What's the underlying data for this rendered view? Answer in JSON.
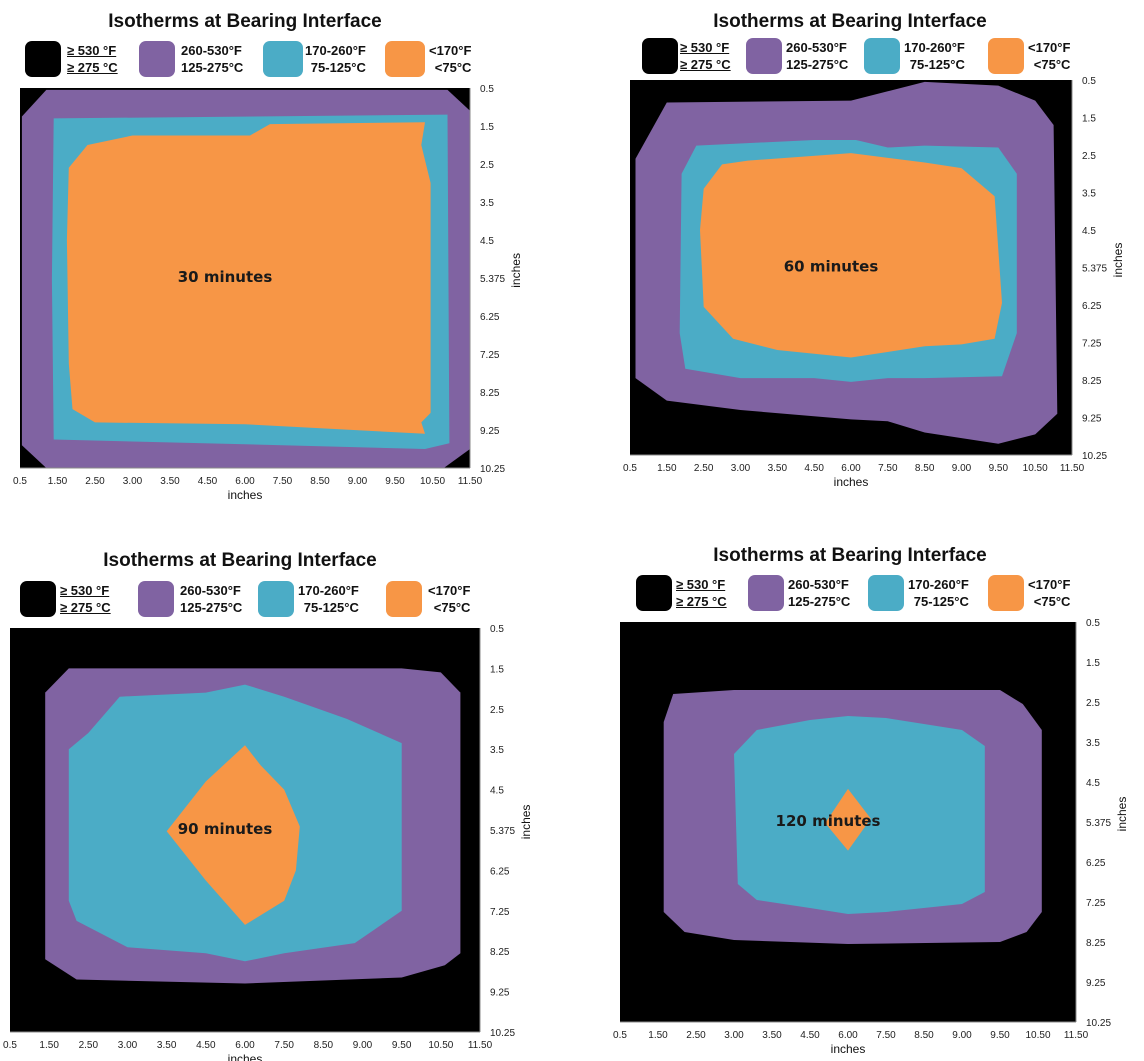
{
  "figure": {
    "legend": [
      {
        "key": "black",
        "line1": "≥ 530 °F",
        "line2": "≥ 275 °C",
        "color": "#000000"
      },
      {
        "key": "purple",
        "line1": "260-530°F",
        "line2": "125-275°C",
        "color": "#8063a2"
      },
      {
        "key": "teal",
        "line1": "170-260°F",
        "line2": "75-125°C",
        "color": "#4bacc6"
      },
      {
        "key": "orange",
        "line1": "<170°F",
        "line2": "<75°C",
        "color": "#f79646"
      }
    ],
    "x_ticks": [
      "0.5",
      "1.50",
      "2.50",
      "3.00",
      "3.50",
      "4.50",
      "6.00",
      "7.50",
      "8.50",
      "9.00",
      "9.50",
      "10.50",
      "11.50"
    ],
    "y_ticks": [
      "0.5",
      "1.5",
      "2.5",
      "3.5",
      "4.5",
      "5.375",
      "6.25",
      "7.25",
      "8.25",
      "9.25",
      "10.25"
    ]
  },
  "chart_data": [
    {
      "type": "contour",
      "title": "Isotherms at Bearing Interface",
      "annotation": "30 minutes",
      "xlabel": "inches",
      "ylabel": "inches",
      "x_positions": [
        0.5,
        1.5,
        2.5,
        3.0,
        3.5,
        4.5,
        6.0,
        7.5,
        8.5,
        9.0,
        9.5,
        10.5,
        11.5
      ],
      "y_positions": [
        0.5,
        1.5,
        2.5,
        3.5,
        4.5,
        5.375,
        6.25,
        7.25,
        8.25,
        9.25,
        10.25
      ],
      "regions": [
        {
          "band": "purple",
          "polygon": [
            [
              1.2,
              0.55
            ],
            [
              10.9,
              0.55
            ],
            [
              11.5,
              1.1
            ],
            [
              11.5,
              9.75
            ],
            [
              10.8,
              10.25
            ],
            [
              1.2,
              10.25
            ],
            [
              0.55,
              9.65
            ],
            [
              0.55,
              1.25
            ]
          ]
        },
        {
          "band": "teal",
          "polygon": [
            [
              1.4,
              1.3
            ],
            [
              10.9,
              1.2
            ],
            [
              10.95,
              9.6
            ],
            [
              10.3,
              9.75
            ],
            [
              7.5,
              9.65
            ],
            [
              1.4,
              9.5
            ],
            [
              1.35,
              5.4
            ]
          ]
        },
        {
          "band": "orange",
          "polygon": [
            [
              2.3,
              2.0
            ],
            [
              3.0,
              1.75
            ],
            [
              6.2,
              1.75
            ],
            [
              7.0,
              1.45
            ],
            [
              10.3,
              1.4
            ],
            [
              10.2,
              2.0
            ],
            [
              10.45,
              3.0
            ],
            [
              10.45,
              8.8
            ],
            [
              10.2,
              9.05
            ],
            [
              10.3,
              9.35
            ],
            [
              7.5,
              9.15
            ],
            [
              6.0,
              9.1
            ],
            [
              2.5,
              9.05
            ],
            [
              1.9,
              8.7
            ],
            [
              1.8,
              7.5
            ],
            [
              1.75,
              4.5
            ],
            [
              1.8,
              2.6
            ]
          ]
        }
      ]
    },
    {
      "type": "contour",
      "title": "Isotherms at Bearing Interface",
      "annotation": "60 minutes",
      "xlabel": "inches",
      "ylabel": "inches",
      "x_positions": [
        0.5,
        1.5,
        2.5,
        3.0,
        3.5,
        4.5,
        6.0,
        7.5,
        8.5,
        9.0,
        9.5,
        10.5,
        11.5
      ],
      "y_positions": [
        0.5,
        1.5,
        2.5,
        3.5,
        4.5,
        5.375,
        6.25,
        7.25,
        8.25,
        9.25,
        10.25
      ],
      "regions": [
        {
          "band": "purple",
          "polygon": [
            [
              1.5,
              1.1
            ],
            [
              6.0,
              1.05
            ],
            [
              7.5,
              0.8
            ],
            [
              8.5,
              0.55
            ],
            [
              9.5,
              0.65
            ],
            [
              10.5,
              1.05
            ],
            [
              11.0,
              1.7
            ],
            [
              11.1,
              9.15
            ],
            [
              10.5,
              9.7
            ],
            [
              9.5,
              9.95
            ],
            [
              8.5,
              9.65
            ],
            [
              7.5,
              9.35
            ],
            [
              6.0,
              9.3
            ],
            [
              3.0,
              9.05
            ],
            [
              1.5,
              8.8
            ],
            [
              0.65,
              8.2
            ],
            [
              0.65,
              2.6
            ]
          ]
        },
        {
          "band": "teal",
          "polygon": [
            [
              2.3,
              2.25
            ],
            [
              4.5,
              2.1
            ],
            [
              6.2,
              2.1
            ],
            [
              7.5,
              2.3
            ],
            [
              8.5,
              2.25
            ],
            [
              9.5,
              2.3
            ],
            [
              10.0,
              3.0
            ],
            [
              10.0,
              7.0
            ],
            [
              9.6,
              8.15
            ],
            [
              8.5,
              8.2
            ],
            [
              7.5,
              8.2
            ],
            [
              6.0,
              8.3
            ],
            [
              4.5,
              8.2
            ],
            [
              3.0,
              8.2
            ],
            [
              2.0,
              7.95
            ],
            [
              1.85,
              7.0
            ],
            [
              1.9,
              3.0
            ]
          ]
        },
        {
          "band": "orange",
          "polygon": [
            [
              3.1,
              2.65
            ],
            [
              6.0,
              2.45
            ],
            [
              8.5,
              2.7
            ],
            [
              9.0,
              2.85
            ],
            [
              9.45,
              3.6
            ],
            [
              9.6,
              6.2
            ],
            [
              9.45,
              7.15
            ],
            [
              9.0,
              7.3
            ],
            [
              8.5,
              7.35
            ],
            [
              6.0,
              7.65
            ],
            [
              3.5,
              7.45
            ],
            [
              2.9,
              7.15
            ],
            [
              2.5,
              6.3
            ],
            [
              2.4,
              4.5
            ],
            [
              2.5,
              3.4
            ],
            [
              2.75,
              2.75
            ]
          ]
        }
      ]
    },
    {
      "type": "contour",
      "title": "Isotherms at Bearing Interface",
      "annotation": "90 minutes",
      "xlabel": "inches",
      "ylabel": "inches",
      "x_positions": [
        0.5,
        1.5,
        2.5,
        3.0,
        3.5,
        4.5,
        6.0,
        7.5,
        8.5,
        9.0,
        9.5,
        10.5,
        11.5
      ],
      "y_positions": [
        0.5,
        1.5,
        2.5,
        3.5,
        4.5,
        5.375,
        6.25,
        7.25,
        8.25,
        9.25,
        10.25
      ],
      "regions": [
        {
          "band": "purple",
          "polygon": [
            [
              2.0,
              1.5
            ],
            [
              3.5,
              1.5
            ],
            [
              9.5,
              1.5
            ],
            [
              10.5,
              1.6
            ],
            [
              11.0,
              2.1
            ],
            [
              11.0,
              8.3
            ],
            [
              10.6,
              8.6
            ],
            [
              9.5,
              8.9
            ],
            [
              6.0,
              9.05
            ],
            [
              2.2,
              8.95
            ],
            [
              1.4,
              8.45
            ],
            [
              1.4,
              2.1
            ]
          ]
        },
        {
          "band": "teal",
          "polygon": [
            [
              2.9,
              2.2
            ],
            [
              4.5,
              2.1
            ],
            [
              6.0,
              1.9
            ],
            [
              7.5,
              2.2
            ],
            [
              8.8,
              2.75
            ],
            [
              9.5,
              3.35
            ],
            [
              9.5,
              7.25
            ],
            [
              8.9,
              8.05
            ],
            [
              7.5,
              8.3
            ],
            [
              6.0,
              8.5
            ],
            [
              4.5,
              8.3
            ],
            [
              3.0,
              8.15
            ],
            [
              2.2,
              7.5
            ],
            [
              2.0,
              7.0
            ],
            [
              2.0,
              3.5
            ],
            [
              2.5,
              3.1
            ]
          ]
        },
        {
          "band": "orange",
          "polygon": [
            [
              6.0,
              3.4
            ],
            [
              6.6,
              3.9
            ],
            [
              7.5,
              4.5
            ],
            [
              7.9,
              5.3
            ],
            [
              7.8,
              6.25
            ],
            [
              7.5,
              7.0
            ],
            [
              6.0,
              7.6
            ],
            [
              4.5,
              6.5
            ],
            [
              3.5,
              5.4
            ],
            [
              4.5,
              4.3
            ]
          ]
        }
      ]
    },
    {
      "type": "contour",
      "title": "Isotherms at Bearing Interface",
      "annotation": "120 minutes",
      "xlabel": "inches",
      "ylabel": "inches",
      "x_positions": [
        0.5,
        1.5,
        2.5,
        3.0,
        3.5,
        4.5,
        6.0,
        7.5,
        8.5,
        9.0,
        9.5,
        10.5,
        11.5
      ],
      "y_positions": [
        0.5,
        1.5,
        2.5,
        3.5,
        4.5,
        5.375,
        6.25,
        7.25,
        8.25,
        9.25,
        10.25
      ],
      "regions": [
        {
          "band": "purple",
          "polygon": [
            [
              1.9,
              2.3
            ],
            [
              3.0,
              2.2
            ],
            [
              9.5,
              2.2
            ],
            [
              10.1,
              2.55
            ],
            [
              10.6,
              3.2
            ],
            [
              10.6,
              7.5
            ],
            [
              10.2,
              8.0
            ],
            [
              9.5,
              8.25
            ],
            [
              6.0,
              8.3
            ],
            [
              3.0,
              8.2
            ],
            [
              2.2,
              8.0
            ],
            [
              1.65,
              7.5
            ],
            [
              1.65,
              3.0
            ]
          ]
        },
        {
          "band": "teal",
          "polygon": [
            [
              3.3,
              3.2
            ],
            [
              4.5,
              2.95
            ],
            [
              6.0,
              2.85
            ],
            [
              7.5,
              2.9
            ],
            [
              9.0,
              3.2
            ],
            [
              9.3,
              3.6
            ],
            [
              9.3,
              7.0
            ],
            [
              9.0,
              7.3
            ],
            [
              7.5,
              7.5
            ],
            [
              6.0,
              7.55
            ],
            [
              4.5,
              7.4
            ],
            [
              3.3,
              7.2
            ],
            [
              3.05,
              6.8
            ],
            [
              3.0,
              3.8
            ]
          ]
        },
        {
          "band": "orange",
          "polygon": [
            [
              6.0,
              4.65
            ],
            [
              6.9,
              5.3
            ],
            [
              6.0,
              6.0
            ],
            [
              5.1,
              5.4
            ]
          ]
        }
      ]
    }
  ]
}
